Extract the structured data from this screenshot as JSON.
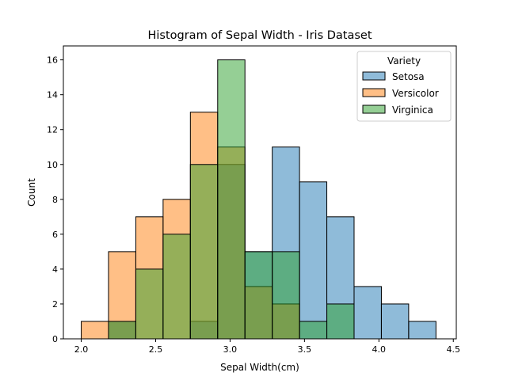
{
  "chart_data": {
    "type": "histogram",
    "title": "Histogram of Sepal Width - Iris Dataset",
    "xlabel": "Sepal Width(cm)",
    "ylabel": "Count",
    "xlim": [
      1.88,
      4.52
    ],
    "ylim": [
      0,
      16.8
    ],
    "xticks": [
      2.0,
      2.5,
      3.0,
      3.5,
      4.0,
      4.5
    ],
    "xtick_labels": [
      "2.0",
      "2.5",
      "3.0",
      "3.5",
      "4.0",
      "4.5"
    ],
    "yticks": [
      0,
      2,
      4,
      6,
      8,
      10,
      12,
      14,
      16
    ],
    "ytick_labels": [
      "0",
      "2",
      "4",
      "6",
      "8",
      "10",
      "12",
      "14",
      "16"
    ],
    "grid": false,
    "legend_title": "Variety",
    "legend_position": "top-right",
    "bin_edges": [
      2.0,
      2.1833,
      2.3667,
      2.55,
      2.7333,
      2.9167,
      3.1,
      3.2833,
      3.4667,
      3.65,
      3.8333,
      4.0167,
      4.2,
      4.3833
    ],
    "series": [
      {
        "name": "Setosa",
        "color": "#1f77b4",
        "counts": [
          0,
          1,
          0,
          0,
          1,
          10,
          5,
          11,
          9,
          7,
          3,
          2,
          1
        ]
      },
      {
        "name": "Versicolor",
        "color": "#ff7f0e",
        "counts": [
          1,
          5,
          7,
          8,
          13,
          11,
          3,
          2,
          0,
          0,
          0,
          0,
          0
        ]
      },
      {
        "name": "Virginica",
        "color": "#2ca02c",
        "counts": [
          0,
          1,
          4,
          6,
          10,
          16,
          5,
          5,
          1,
          2,
          0,
          0,
          0
        ]
      }
    ]
  }
}
